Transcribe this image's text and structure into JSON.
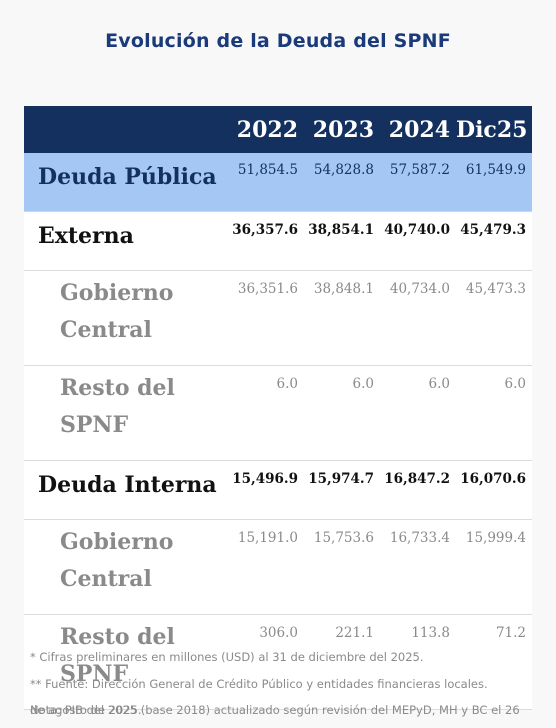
{
  "title": "Evolución de la Deuda del SPNF",
  "table": {
    "headers": [
      "2022",
      "2023",
      "2024",
      "Dic25"
    ],
    "rows": [
      {
        "label": "Deuda Pública",
        "values": [
          "51,854.5",
          "54,828.8",
          "57,587.2",
          "61,549.9"
        ]
      },
      {
        "label": "Externa",
        "values": [
          "36,357.6",
          "38,854.1",
          "40,740.0",
          "45,479.3"
        ]
      },
      {
        "label_lines": [
          "Gobierno",
          "Central"
        ],
        "values": [
          "36,351.6",
          "38,848.1",
          "40,734.0",
          "45,473.3"
        ]
      },
      {
        "label_lines": [
          "Resto del",
          "SPNF"
        ],
        "values": [
          "6.0",
          "6.0",
          "6.0",
          "6.0"
        ]
      },
      {
        "label": "Deuda Interna",
        "values": [
          "15,496.9",
          "15,974.7",
          "16,847.2",
          "16,070.6"
        ]
      },
      {
        "label_lines": [
          "Gobierno",
          "Central"
        ],
        "values": [
          "15,191.0",
          "15,753.6",
          "16,733.4",
          "15,999.4"
        ]
      },
      {
        "label_lines": [
          "Resto del",
          "SPNF"
        ],
        "values": [
          "306.0",
          "221.1",
          "113.8",
          "71.2"
        ]
      }
    ]
  },
  "notes": [
    "* Cifras preliminares en millones (USD) al 31 de diciembre del 2025.",
    "** Fuente: Dirección General de Crédito Público y entidades financieras locales.",
    "Nota: PIB del 2025 (base 2018) actualizado según revisión del MEPyD, MH y BC el 26",
    "de agosto de 2025."
  ]
}
